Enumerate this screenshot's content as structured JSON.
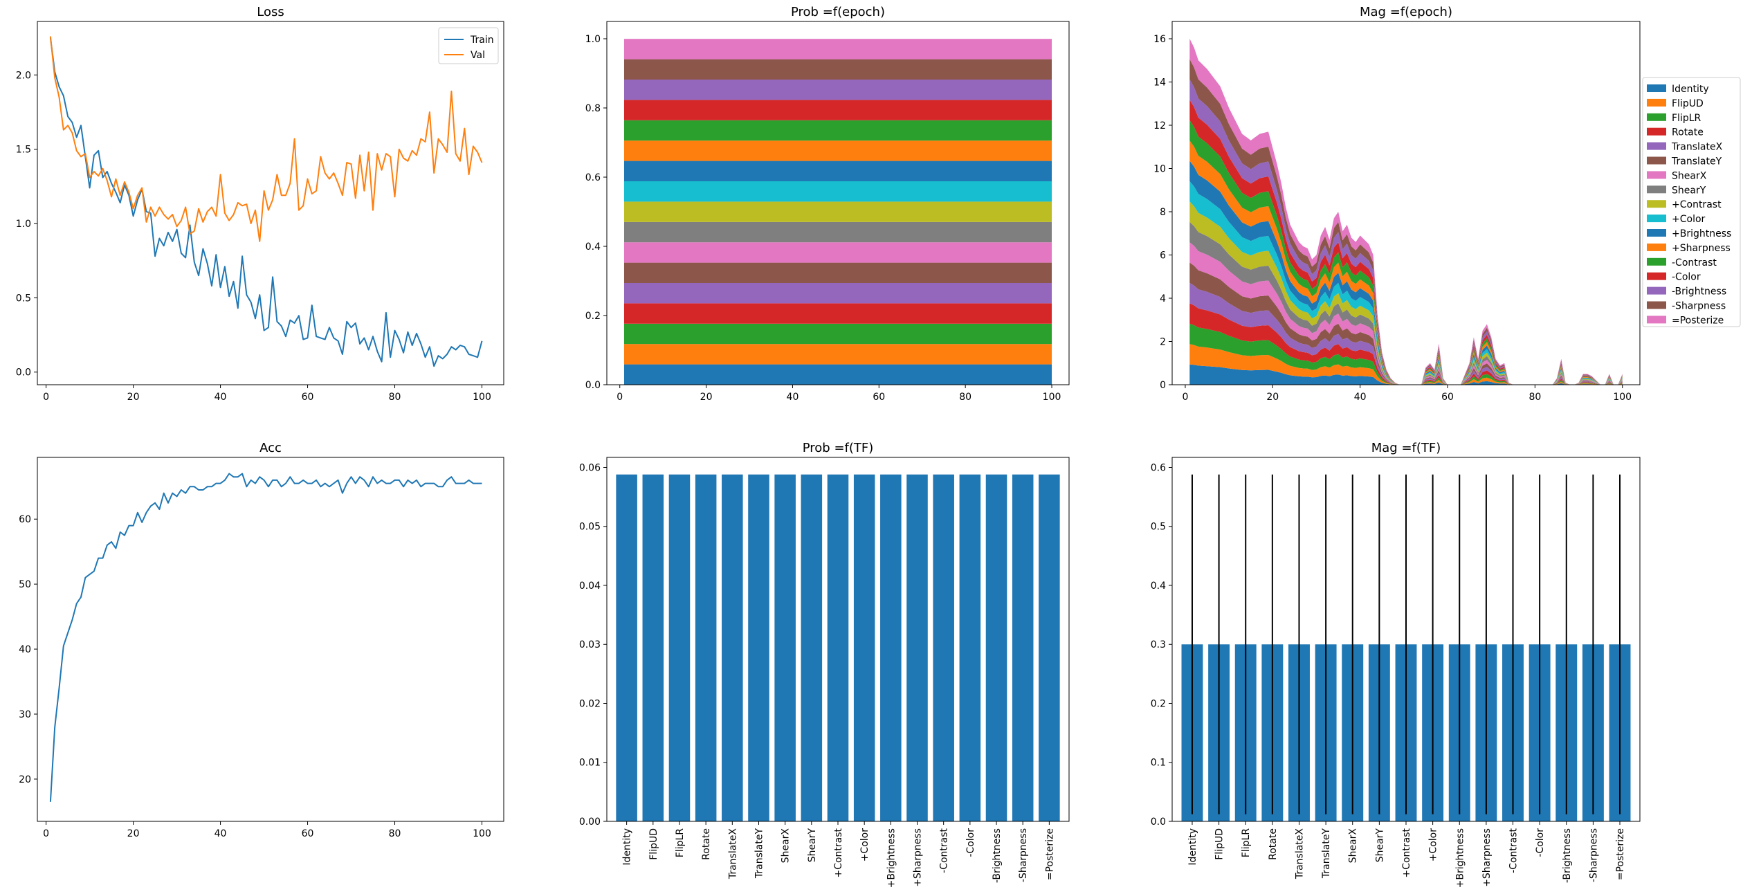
{
  "chart_data": [
    {
      "type": "line",
      "title": "Loss",
      "xlim": [
        -2,
        105
      ],
      "ylim": [
        -0.085,
        2.36
      ],
      "xticks": [
        0,
        20,
        40,
        60,
        80,
        100
      ],
      "yticks": [
        0.0,
        0.5,
        1.0,
        1.5,
        2.0
      ],
      "legend": "top-right",
      "series": [
        {
          "name": "Train",
          "color": "#1f77b4",
          "x": [
            1,
            2,
            3,
            4,
            5,
            6,
            7,
            8,
            9,
            10,
            11,
            12,
            13,
            14,
            15,
            16,
            17,
            18,
            19,
            20,
            21,
            22,
            23,
            24,
            25,
            26,
            27,
            28,
            29,
            30,
            31,
            32,
            33,
            34,
            35,
            36,
            37,
            38,
            39,
            40,
            41,
            42,
            43,
            44,
            45,
            46,
            47,
            48,
            49,
            50,
            51,
            52,
            53,
            54,
            55,
            56,
            57,
            58,
            59,
            60,
            61,
            62,
            63,
            64,
            65,
            66,
            67,
            68,
            69,
            70,
            71,
            72,
            73,
            74,
            75,
            76,
            77,
            78,
            79,
            80,
            81,
            82,
            83,
            84,
            85,
            86,
            87,
            88,
            89,
            90,
            91,
            92,
            93,
            94,
            95,
            96,
            97,
            98,
            99,
            100
          ],
          "values": [
            2.25,
            2.02,
            1.92,
            1.86,
            1.72,
            1.68,
            1.58,
            1.66,
            1.45,
            1.24,
            1.46,
            1.49,
            1.31,
            1.35,
            1.27,
            1.21,
            1.14,
            1.26,
            1.19,
            1.05,
            1.16,
            1.23,
            1.08,
            1.07,
            0.78,
            0.9,
            0.85,
            0.94,
            0.88,
            0.96,
            0.8,
            0.77,
            0.99,
            0.74,
            0.65,
            0.83,
            0.73,
            0.58,
            0.79,
            0.57,
            0.71,
            0.51,
            0.61,
            0.43,
            0.78,
            0.52,
            0.47,
            0.36,
            0.52,
            0.28,
            0.3,
            0.64,
            0.34,
            0.31,
            0.24,
            0.35,
            0.33,
            0.38,
            0.22,
            0.23,
            0.45,
            0.24,
            0.23,
            0.22,
            0.3,
            0.23,
            0.21,
            0.12,
            0.34,
            0.3,
            0.33,
            0.19,
            0.23,
            0.15,
            0.24,
            0.14,
            0.07,
            0.4,
            0.1,
            0.28,
            0.22,
            0.13,
            0.27,
            0.18,
            0.26,
            0.19,
            0.1,
            0.17,
            0.04,
            0.11,
            0.09,
            0.12,
            0.17,
            0.15,
            0.18,
            0.17,
            0.12,
            0.11,
            0.1,
            0.21
          ]
        },
        {
          "name": "Val",
          "color": "#ff7f0e",
          "x": [
            1,
            2,
            3,
            4,
            5,
            6,
            7,
            8,
            9,
            10,
            11,
            12,
            13,
            14,
            15,
            16,
            17,
            18,
            19,
            20,
            21,
            22,
            23,
            24,
            25,
            26,
            27,
            28,
            29,
            30,
            31,
            32,
            33,
            34,
            35,
            36,
            37,
            38,
            39,
            40,
            41,
            42,
            43,
            44,
            45,
            46,
            47,
            48,
            49,
            50,
            51,
            52,
            53,
            54,
            55,
            56,
            57,
            58,
            59,
            60,
            61,
            62,
            63,
            64,
            65,
            66,
            67,
            68,
            69,
            70,
            71,
            72,
            73,
            74,
            75,
            76,
            77,
            78,
            79,
            80,
            81,
            82,
            83,
            84,
            85,
            86,
            87,
            88,
            89,
            90,
            91,
            92,
            93,
            94,
            95,
            96,
            97,
            98,
            99,
            100
          ],
          "values": [
            2.26,
            1.98,
            1.85,
            1.63,
            1.66,
            1.61,
            1.49,
            1.45,
            1.47,
            1.31,
            1.35,
            1.32,
            1.37,
            1.29,
            1.18,
            1.3,
            1.19,
            1.28,
            1.21,
            1.1,
            1.19,
            1.24,
            1.01,
            1.11,
            1.05,
            1.11,
            1.06,
            1.03,
            1.06,
            0.98,
            1.02,
            1.11,
            0.93,
            0.95,
            1.1,
            1.01,
            1.08,
            1.11,
            1.05,
            1.33,
            1.07,
            1.02,
            1.06,
            1.14,
            1.12,
            1.13,
            1.0,
            1.09,
            0.88,
            1.22,
            1.09,
            1.16,
            1.33,
            1.19,
            1.19,
            1.27,
            1.57,
            1.09,
            1.12,
            1.3,
            1.2,
            1.22,
            1.45,
            1.34,
            1.3,
            1.34,
            1.27,
            1.19,
            1.41,
            1.4,
            1.17,
            1.46,
            1.22,
            1.48,
            1.09,
            1.47,
            1.36,
            1.47,
            1.45,
            1.18,
            1.5,
            1.44,
            1.42,
            1.49,
            1.46,
            1.57,
            1.55,
            1.75,
            1.34,
            1.57,
            1.53,
            1.48,
            1.89,
            1.47,
            1.42,
            1.64,
            1.33,
            1.52,
            1.48,
            1.41
          ]
        }
      ]
    },
    {
      "type": "area",
      "stacked": true,
      "title": "Prob =f(epoch)",
      "xlim": [
        -3,
        104
      ],
      "ylim": [
        0,
        1.05
      ],
      "xticks": [
        0,
        20,
        40,
        60,
        80,
        100
      ],
      "yticks": [
        0.0,
        0.2,
        0.4,
        0.6,
        0.8,
        1.0
      ],
      "x_range": [
        1,
        100
      ],
      "series_names": [
        "Identity",
        "FlipUD",
        "FlipLR",
        "Rotate",
        "TranslateX",
        "TranslateY",
        "ShearX",
        "ShearY",
        "+Contrast",
        "+Color",
        "+Brightness",
        "+Sharpness",
        "-Contrast",
        "-Color",
        "-Brightness",
        "-Sharpness",
        "=Posterize"
      ],
      "series_colors": [
        "#1f77b4",
        "#ff7f0e",
        "#2ca02c",
        "#d62728",
        "#9467bd",
        "#8c564b",
        "#e377c2",
        "#7f7f7f",
        "#bcbd22",
        "#17becf",
        "#1f77b4",
        "#ff7f0e",
        "#2ca02c",
        "#d62728",
        "#9467bd",
        "#8c564b",
        "#e377c2"
      ],
      "value_each": 0.0588
    },
    {
      "type": "area",
      "stacked": true,
      "title": "Mag =f(epoch)",
      "xlim": [
        -3,
        104
      ],
      "ylim": [
        0,
        16.8
      ],
      "xticks": [
        0,
        20,
        40,
        60,
        80,
        100
      ],
      "yticks": [
        0,
        2,
        4,
        6,
        8,
        10,
        12,
        14,
        16
      ],
      "legend": "right, outside",
      "total_x": [
        1,
        2,
        3,
        5,
        8,
        10,
        13,
        15,
        17,
        19,
        21,
        22,
        23,
        24,
        25,
        26,
        27,
        28,
        29,
        30,
        31,
        32,
        33,
        34,
        35,
        36,
        37,
        38,
        39,
        40,
        41,
        42,
        43,
        44,
        45,
        46,
        47,
        48,
        49,
        50,
        51,
        52,
        53,
        54,
        55,
        56,
        57,
        58,
        59,
        60,
        61,
        62,
        63,
        64,
        65,
        66,
        67,
        68,
        69,
        70,
        71,
        72,
        73,
        74,
        75,
        76,
        77,
        78,
        79,
        80,
        81,
        82,
        83,
        84,
        85,
        86,
        87,
        88,
        89,
        90,
        91,
        92,
        93,
        94,
        95,
        96,
        97,
        98,
        99,
        100
      ],
      "total_y": [
        16.0,
        15.6,
        15.0,
        14.6,
        13.8,
        12.8,
        11.6,
        11.3,
        11.6,
        11.7,
        10.2,
        9.3,
        8.2,
        7.4,
        7.0,
        6.6,
        6.4,
        6.3,
        5.8,
        6.0,
        6.9,
        7.3,
        6.7,
        7.7,
        8.0,
        7.1,
        7.4,
        6.8,
        6.6,
        6.9,
        6.7,
        6.5,
        6.0,
        3.2,
        1.5,
        0.7,
        0.3,
        0.1,
        0.0,
        0.0,
        0.0,
        0.0,
        0.0,
        0.0,
        0.8,
        1.0,
        0.7,
        1.9,
        0.3,
        0.0,
        0.0,
        0.0,
        0.0,
        0.5,
        1.0,
        2.2,
        1.2,
        2.5,
        2.8,
        2.2,
        1.2,
        0.9,
        1.0,
        0.1,
        0.0,
        0.0,
        0.0,
        0.0,
        0.0,
        0.0,
        0.0,
        0.0,
        0.0,
        0.0,
        0.3,
        1.2,
        0.1,
        0.0,
        0.0,
        0.1,
        0.5,
        0.5,
        0.4,
        0.2,
        0.0,
        0.0,
        0.5,
        0.0,
        0.0,
        0.5
      ],
      "series_names": [
        "Identity",
        "FlipUD",
        "FlipLR",
        "Rotate",
        "TranslateX",
        "TranslateY",
        "ShearX",
        "ShearY",
        "+Contrast",
        "+Color",
        "+Brightness",
        "+Sharpness",
        "-Contrast",
        "-Color",
        "-Brightness",
        "-Sharpness",
        "=Posterize"
      ],
      "series_colors": [
        "#1f77b4",
        "#ff7f0e",
        "#2ca02c",
        "#d62728",
        "#9467bd",
        "#8c564b",
        "#e377c2",
        "#7f7f7f",
        "#bcbd22",
        "#17becf",
        "#1f77b4",
        "#ff7f0e",
        "#2ca02c",
        "#d62728",
        "#9467bd",
        "#8c564b",
        "#e377c2"
      ]
    },
    {
      "type": "line",
      "title": "Acc",
      "xlim": [
        -2,
        105
      ],
      "ylim": [
        13.5,
        69.5
      ],
      "xticks": [
        0,
        20,
        40,
        60,
        80,
        100
      ],
      "yticks": [
        20,
        30,
        40,
        50,
        60
      ],
      "series": [
        {
          "name": "",
          "color": "#1f77b4",
          "x": [
            1,
            2,
            3,
            4,
            5,
            6,
            7,
            8,
            9,
            10,
            11,
            12,
            13,
            14,
            15,
            16,
            17,
            18,
            19,
            20,
            21,
            22,
            23,
            24,
            25,
            26,
            27,
            28,
            29,
            30,
            31,
            32,
            33,
            34,
            35,
            36,
            37,
            38,
            39,
            40,
            41,
            42,
            43,
            44,
            45,
            46,
            47,
            48,
            49,
            50,
            51,
            52,
            53,
            54,
            55,
            56,
            57,
            58,
            59,
            60,
            61,
            62,
            63,
            64,
            65,
            66,
            67,
            68,
            69,
            70,
            71,
            72,
            73,
            74,
            75,
            76,
            77,
            78,
            79,
            80,
            81,
            82,
            83,
            84,
            85,
            86,
            87,
            88,
            89,
            90,
            91,
            92,
            93,
            94,
            95,
            96,
            97,
            98,
            99,
            100
          ],
          "values": [
            16.5,
            28.0,
            34.0,
            40.5,
            42.5,
            44.5,
            47.0,
            48.0,
            51.0,
            51.5,
            52.0,
            54.0,
            54.0,
            56.0,
            56.5,
            55.5,
            58.0,
            57.5,
            59.0,
            59.0,
            61.0,
            59.5,
            61.0,
            62.0,
            62.5,
            61.5,
            64.0,
            62.5,
            64.0,
            63.5,
            64.5,
            64.0,
            65.0,
            65.0,
            64.5,
            64.5,
            65.0,
            65.0,
            65.5,
            65.5,
            66.0,
            67.0,
            66.5,
            66.5,
            67.0,
            65.0,
            66.0,
            65.5,
            66.5,
            66.0,
            65.0,
            66.0,
            66.0,
            65.0,
            65.5,
            66.5,
            65.5,
            65.5,
            66.0,
            65.5,
            65.5,
            66.0,
            65.0,
            65.5,
            65.0,
            65.5,
            66.0,
            64.0,
            65.5,
            66.5,
            65.5,
            66.5,
            66.0,
            65.0,
            66.5,
            65.5,
            66.0,
            65.5,
            65.5,
            66.0,
            66.0,
            65.0,
            66.0,
            65.5,
            66.0,
            65.0,
            65.5,
            65.5,
            65.5,
            65.0,
            65.0,
            66.0,
            66.5,
            65.5,
            65.5,
            65.5,
            66.0,
            65.5,
            65.5,
            65.5
          ]
        }
      ]
    },
    {
      "type": "bar",
      "title": "Prob =f(TF)",
      "ylim": [
        0,
        0.0617
      ],
      "yticks": [
        0.0,
        0.01,
        0.02,
        0.03,
        0.04,
        0.05,
        0.06
      ],
      "categories": [
        "Identity",
        "FlipUD",
        "FlipLR",
        "Rotate",
        "TranslateX",
        "TranslateY",
        "ShearX",
        "ShearY",
        "+Contrast",
        "+Color",
        "+Brightness",
        "+Sharpness",
        "-Contrast",
        "-Color",
        "-Brightness",
        "-Sharpness",
        "=Posterize"
      ],
      "values": [
        0.0588,
        0.0588,
        0.0588,
        0.0588,
        0.0588,
        0.0588,
        0.0588,
        0.0588,
        0.0588,
        0.0588,
        0.0588,
        0.0588,
        0.0588,
        0.0588,
        0.0588,
        0.0588,
        0.0588
      ],
      "color": "#1f77b4"
    },
    {
      "type": "bar",
      "title": "Mag =f(TF)",
      "ylim": [
        0,
        0.617
      ],
      "yticks": [
        0.0,
        0.1,
        0.2,
        0.3,
        0.4,
        0.5,
        0.6
      ],
      "categories": [
        "Identity",
        "FlipUD",
        "FlipLR",
        "Rotate",
        "TranslateX",
        "TranslateY",
        "ShearX",
        "ShearY",
        "+Contrast",
        "+Color",
        "+Brightness",
        "+Sharpness",
        "-Contrast",
        "-Color",
        "-Brightness",
        "-Sharpness",
        "=Posterize"
      ],
      "values": [
        0.3,
        0.3,
        0.3,
        0.3,
        0.3,
        0.3,
        0.3,
        0.3,
        0.3,
        0.3,
        0.3,
        0.3,
        0.3,
        0.3,
        0.3,
        0.3,
        0.3
      ],
      "error_bars": [
        [
          0.012,
          0.588
        ],
        [
          0.012,
          0.588
        ],
        [
          0.012,
          0.588
        ],
        [
          0.012,
          0.588
        ],
        [
          0.012,
          0.588
        ],
        [
          0.012,
          0.588
        ],
        [
          0.012,
          0.588
        ],
        [
          0.012,
          0.588
        ],
        [
          0.012,
          0.588
        ],
        [
          0.012,
          0.588
        ],
        [
          0.012,
          0.588
        ],
        [
          0.012,
          0.588
        ],
        [
          0.012,
          0.588
        ],
        [
          0.012,
          0.588
        ],
        [
          0.012,
          0.588
        ],
        [
          0.012,
          0.588
        ],
        [
          0.012,
          0.588
        ]
      ],
      "color": "#1f77b4"
    }
  ]
}
